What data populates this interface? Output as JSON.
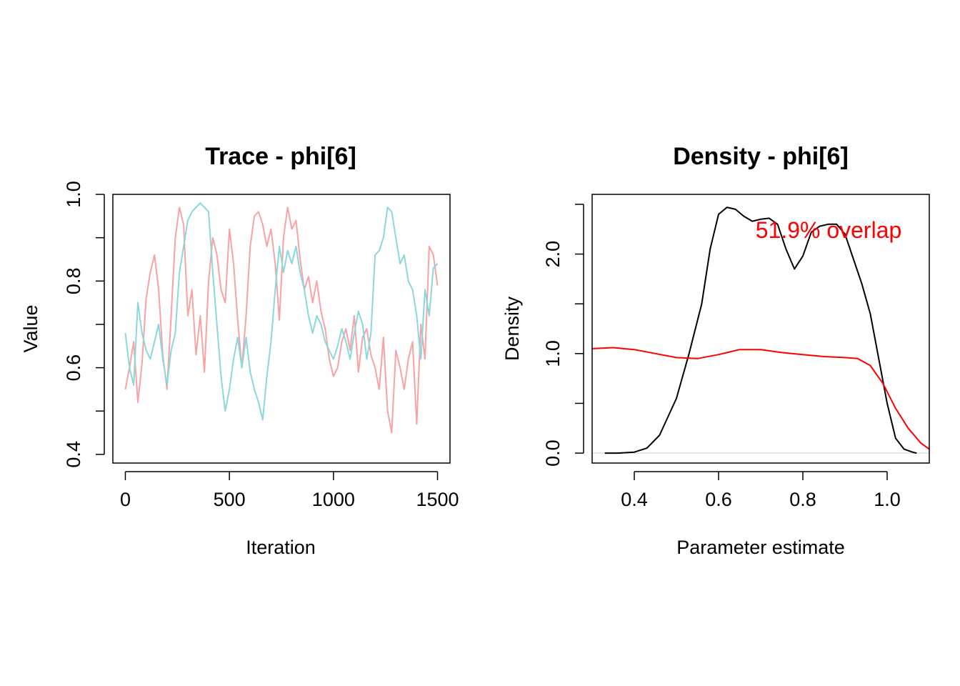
{
  "chart_data": [
    {
      "type": "line",
      "title": "Trace - phi[6]",
      "xlabel": "Iteration",
      "ylabel": "Value",
      "xlim": [
        -60,
        1560
      ],
      "ylim": [
        0.38,
        1.0
      ],
      "xticks": [
        0,
        500,
        1000,
        1500
      ],
      "xtick_labels": [
        "0",
        "500",
        "1000",
        "1500"
      ],
      "yticks": [
        0.4,
        0.5,
        0.6,
        0.7,
        0.8,
        0.9,
        1.0
      ],
      "ytick_labels": [
        "0.4",
        "",
        "0.6",
        "",
        "0.8",
        "",
        "1.0"
      ],
      "grid": false,
      "colors": [
        "#f8a3a3",
        "#8ad8dc"
      ],
      "series": [
        {
          "points": [
            [
              0,
              0.55
            ],
            [
              20,
              0.6
            ],
            [
              40,
              0.66
            ],
            [
              60,
              0.52
            ],
            [
              80,
              0.61
            ],
            [
              100,
              0.76
            ],
            [
              120,
              0.82
            ],
            [
              140,
              0.86
            ],
            [
              160,
              0.78
            ],
            [
              180,
              0.63
            ],
            [
              200,
              0.55
            ],
            [
              220,
              0.72
            ],
            [
              240,
              0.9
            ],
            [
              260,
              0.97
            ],
            [
              280,
              0.93
            ],
            [
              300,
              0.72
            ],
            [
              320,
              0.78
            ],
            [
              340,
              0.63
            ],
            [
              360,
              0.72
            ],
            [
              380,
              0.59
            ],
            [
              400,
              0.8
            ],
            [
              420,
              0.9
            ],
            [
              440,
              0.86
            ],
            [
              460,
              0.78
            ],
            [
              480,
              0.75
            ],
            [
              500,
              0.92
            ],
            [
              520,
              0.84
            ],
            [
              540,
              0.71
            ],
            [
              560,
              0.6
            ],
            [
              580,
              0.72
            ],
            [
              600,
              0.88
            ],
            [
              620,
              0.95
            ],
            [
              640,
              0.96
            ],
            [
              660,
              0.93
            ],
            [
              680,
              0.88
            ],
            [
              700,
              0.92
            ],
            [
              720,
              0.84
            ],
            [
              740,
              0.71
            ],
            [
              760,
              0.9
            ],
            [
              780,
              0.97
            ],
            [
              800,
              0.92
            ],
            [
              820,
              0.94
            ],
            [
              840,
              0.85
            ],
            [
              860,
              0.78
            ],
            [
              880,
              0.81
            ],
            [
              900,
              0.75
            ],
            [
              920,
              0.8
            ],
            [
              940,
              0.73
            ],
            [
              960,
              0.69
            ],
            [
              980,
              0.62
            ],
            [
              1000,
              0.58
            ],
            [
              1020,
              0.6
            ],
            [
              1040,
              0.66
            ],
            [
              1060,
              0.69
            ],
            [
              1080,
              0.64
            ],
            [
              1100,
              0.72
            ],
            [
              1120,
              0.59
            ],
            [
              1140,
              0.67
            ],
            [
              1160,
              0.69
            ],
            [
              1180,
              0.63
            ],
            [
              1200,
              0.6
            ],
            [
              1220,
              0.55
            ],
            [
              1240,
              0.67
            ],
            [
              1260,
              0.5
            ],
            [
              1280,
              0.45
            ],
            [
              1300,
              0.64
            ],
            [
              1320,
              0.6
            ],
            [
              1340,
              0.55
            ],
            [
              1360,
              0.62
            ],
            [
              1380,
              0.66
            ],
            [
              1400,
              0.47
            ],
            [
              1420,
              0.7
            ],
            [
              1440,
              0.62
            ],
            [
              1460,
              0.88
            ],
            [
              1480,
              0.86
            ],
            [
              1500,
              0.79
            ]
          ]
        },
        {
          "points": [
            [
              0,
              0.68
            ],
            [
              20,
              0.6
            ],
            [
              40,
              0.56
            ],
            [
              60,
              0.75
            ],
            [
              80,
              0.68
            ],
            [
              100,
              0.64
            ],
            [
              120,
              0.62
            ],
            [
              140,
              0.66
            ],
            [
              160,
              0.7
            ],
            [
              180,
              0.62
            ],
            [
              200,
              0.56
            ],
            [
              220,
              0.64
            ],
            [
              240,
              0.68
            ],
            [
              260,
              0.82
            ],
            [
              280,
              0.88
            ],
            [
              300,
              0.94
            ],
            [
              320,
              0.96
            ],
            [
              340,
              0.97
            ],
            [
              360,
              0.98
            ],
            [
              380,
              0.97
            ],
            [
              400,
              0.96
            ],
            [
              420,
              0.82
            ],
            [
              440,
              0.7
            ],
            [
              460,
              0.58
            ],
            [
              480,
              0.5
            ],
            [
              500,
              0.55
            ],
            [
              520,
              0.62
            ],
            [
              540,
              0.67
            ],
            [
              560,
              0.6
            ],
            [
              580,
              0.67
            ],
            [
              600,
              0.59
            ],
            [
              620,
              0.55
            ],
            [
              640,
              0.52
            ],
            [
              660,
              0.48
            ],
            [
              680,
              0.58
            ],
            [
              700,
              0.66
            ],
            [
              720,
              0.78
            ],
            [
              740,
              0.88
            ],
            [
              760,
              0.82
            ],
            [
              780,
              0.87
            ],
            [
              800,
              0.84
            ],
            [
              820,
              0.88
            ],
            [
              840,
              0.82
            ],
            [
              860,
              0.78
            ],
            [
              880,
              0.72
            ],
            [
              900,
              0.68
            ],
            [
              920,
              0.72
            ],
            [
              940,
              0.7
            ],
            [
              960,
              0.66
            ],
            [
              980,
              0.64
            ],
            [
              1000,
              0.62
            ],
            [
              1020,
              0.65
            ],
            [
              1040,
              0.69
            ],
            [
              1060,
              0.66
            ],
            [
              1080,
              0.62
            ],
            [
              1100,
              0.68
            ],
            [
              1120,
              0.73
            ],
            [
              1140,
              0.7
            ],
            [
              1160,
              0.62
            ],
            [
              1180,
              0.68
            ],
            [
              1200,
              0.86
            ],
            [
              1220,
              0.87
            ],
            [
              1240,
              0.9
            ],
            [
              1260,
              0.97
            ],
            [
              1280,
              0.96
            ],
            [
              1300,
              0.9
            ],
            [
              1320,
              0.84
            ],
            [
              1340,
              0.86
            ],
            [
              1360,
              0.8
            ],
            [
              1380,
              0.78
            ],
            [
              1400,
              0.72
            ],
            [
              1420,
              0.62
            ],
            [
              1440,
              0.78
            ],
            [
              1460,
              0.72
            ],
            [
              1480,
              0.83
            ],
            [
              1500,
              0.84
            ]
          ]
        }
      ]
    },
    {
      "type": "line",
      "title": "Density - phi[6]",
      "xlabel": "Parameter estimate",
      "ylabel": "Density",
      "xlim": [
        0.3,
        1.1
      ],
      "ylim": [
        -0.1,
        2.6
      ],
      "xticks": [
        0.4,
        0.6,
        0.8,
        1.0
      ],
      "xtick_labels": [
        "0.4",
        "0.6",
        "0.8",
        "1.0"
      ],
      "yticks": [
        0.0,
        0.5,
        1.0,
        1.5,
        2.0,
        2.5
      ],
      "ytick_labels": [
        "0.0",
        "",
        "1.0",
        "",
        "2.0",
        ""
      ],
      "grid": false,
      "annotation": "51.9% overlap",
      "annotation_color": "#ff0000",
      "baseline": 0.0,
      "baseline_color": "#dddddd",
      "series": [
        {
          "color": "#000000",
          "points": [
            [
              0.33,
              0.0
            ],
            [
              0.36,
              0.0
            ],
            [
              0.4,
              0.01
            ],
            [
              0.43,
              0.05
            ],
            [
              0.46,
              0.18
            ],
            [
              0.5,
              0.55
            ],
            [
              0.53,
              1.0
            ],
            [
              0.56,
              1.5
            ],
            [
              0.58,
              2.05
            ],
            [
              0.6,
              2.4
            ],
            [
              0.62,
              2.47
            ],
            [
              0.64,
              2.45
            ],
            [
              0.66,
              2.38
            ],
            [
              0.68,
              2.33
            ],
            [
              0.7,
              2.35
            ],
            [
              0.72,
              2.36
            ],
            [
              0.74,
              2.3
            ],
            [
              0.76,
              2.05
            ],
            [
              0.78,
              1.85
            ],
            [
              0.8,
              1.98
            ],
            [
              0.82,
              2.22
            ],
            [
              0.84,
              2.28
            ],
            [
              0.86,
              2.3
            ],
            [
              0.88,
              2.3
            ],
            [
              0.9,
              2.2
            ],
            [
              0.92,
              1.95
            ],
            [
              0.94,
              1.7
            ],
            [
              0.96,
              1.4
            ],
            [
              0.98,
              0.95
            ],
            [
              1.0,
              0.5
            ],
            [
              1.02,
              0.15
            ],
            [
              1.04,
              0.04
            ],
            [
              1.06,
              0.01
            ],
            [
              1.07,
              0.0
            ]
          ]
        },
        {
          "color": "#ff0000",
          "points": [
            [
              0.3,
              1.05
            ],
            [
              0.35,
              1.06
            ],
            [
              0.4,
              1.04
            ],
            [
              0.45,
              1.0
            ],
            [
              0.5,
              0.96
            ],
            [
              0.55,
              0.95
            ],
            [
              0.6,
              0.99
            ],
            [
              0.65,
              1.04
            ],
            [
              0.7,
              1.04
            ],
            [
              0.75,
              1.01
            ],
            [
              0.8,
              0.99
            ],
            [
              0.85,
              0.97
            ],
            [
              0.9,
              0.96
            ],
            [
              0.93,
              0.95
            ],
            [
              0.96,
              0.88
            ],
            [
              0.99,
              0.7
            ],
            [
              1.02,
              0.45
            ],
            [
              1.05,
              0.25
            ],
            [
              1.08,
              0.1
            ],
            [
              1.1,
              0.04
            ]
          ]
        }
      ]
    }
  ]
}
